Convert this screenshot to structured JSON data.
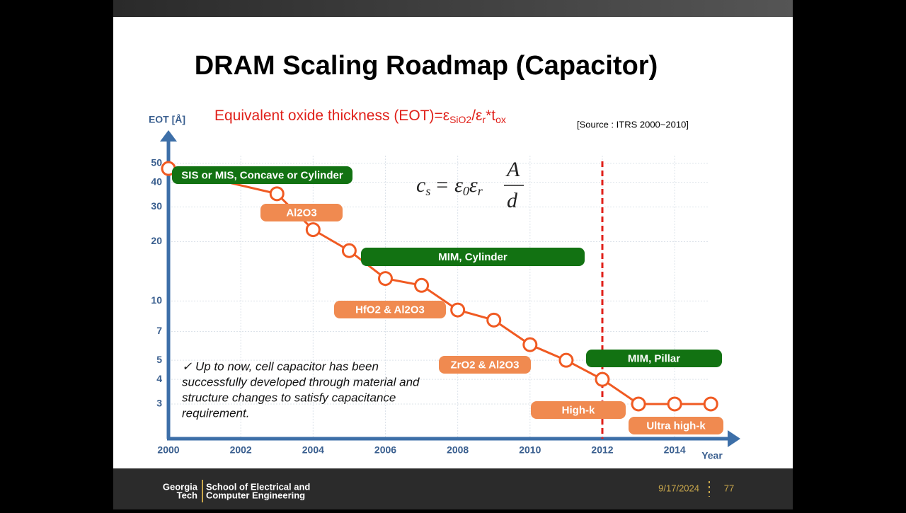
{
  "slide": {
    "title": "DRAM Scaling Roadmap (Capacitor)",
    "footer": {
      "school_lines": [
        "Georgia",
        "Tech",
        "School of Electrical and",
        "Computer Engineering"
      ],
      "date": "9/17/2024",
      "page": "77"
    }
  },
  "chart_data": {
    "type": "line",
    "eot_definition": [
      "Equivalent oxide thickness (EOT)=ε",
      "SiO2",
      "/ε",
      "r",
      "*t",
      "ox"
    ],
    "capacitance_formula": [
      "c",
      "s",
      "= ε",
      "0",
      "ε",
      "r",
      "A",
      "d"
    ],
    "source": "[Source : ITRS 2000~2010]",
    "note": [
      "✓ Up to now, cell capacitor has been",
      "successfully developed through material and",
      "structure changes to satisfy capacitance",
      "requirement."
    ],
    "x_label": "Year",
    "y_label": "EOT [Å]",
    "x": [
      2000,
      2003,
      2004,
      2005,
      2006,
      2007,
      2008,
      2009,
      2010,
      2011,
      2012,
      2013,
      2014,
      2015
    ],
    "values": [
      47,
      35,
      23,
      18,
      13,
      12,
      9,
      8,
      6,
      5,
      4,
      3,
      3,
      3
    ],
    "color": "#f05a22",
    "xlim": [
      2000,
      2015.7
    ],
    "xticks": [
      2000,
      2002,
      2004,
      2006,
      2008,
      2010,
      2012,
      2014
    ],
    "ylim": [
      2,
      70
    ],
    "yticks": [
      3,
      4,
      5,
      7,
      10,
      20,
      30,
      40,
      50
    ],
    "ylog": true,
    "grid": true,
    "reference_x": 2012,
    "reference_color": "#e0201a",
    "annotations": [
      {
        "text": "SIS or MIS, Concave or Cylinder",
        "color": "#127212"
      },
      {
        "text": "Al2O3",
        "color": "#f08a50"
      },
      {
        "text": "MIM, Cylinder",
        "color": "#127212"
      },
      {
        "text": "HfO2 & Al2O3",
        "color": "#f08a50"
      },
      {
        "text": "ZrO2 & Al2O3",
        "color": "#f08a50"
      },
      {
        "text": "MIM, Pillar",
        "color": "#127212"
      },
      {
        "text": "High-k",
        "color": "#f08a50"
      },
      {
        "text": "Ultra high-k",
        "color": "#f08a50"
      }
    ]
  }
}
